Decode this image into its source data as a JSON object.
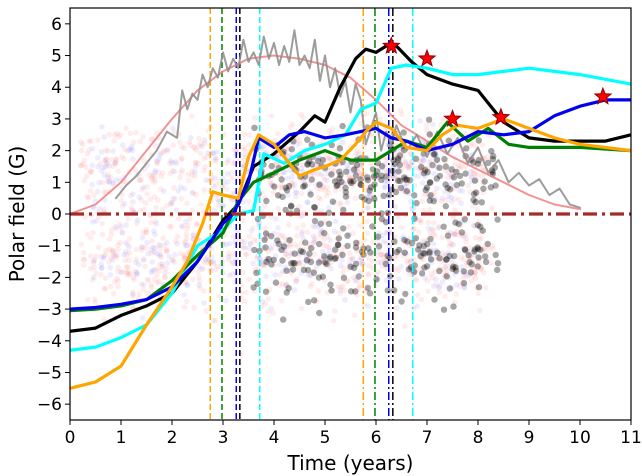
{
  "chart_data": {
    "type": "line",
    "title": "",
    "xlabel": "Time (years)",
    "ylabel": "Polar field (G)",
    "xlim": [
      0,
      11
    ],
    "ylim": [
      -6.5,
      6.5
    ],
    "x_ticks": [
      0,
      1,
      2,
      3,
      4,
      5,
      6,
      7,
      8,
      9,
      10,
      11
    ],
    "y_ticks": [
      -6,
      -5,
      -4,
      -3,
      -2,
      -1,
      0,
      1,
      2,
      3,
      4,
      5,
      6
    ],
    "grid": false,
    "legend": "none",
    "series": [
      {
        "color": "#000000",
        "style": "solid",
        "x": [
          0,
          0.5,
          1,
          1.5,
          2,
          2.5,
          3,
          3.3,
          3.6,
          4,
          4.5,
          4.8,
          5,
          5.3,
          5.6,
          5.8,
          6,
          6.2,
          6.4,
          6.7,
          7,
          7.5,
          8,
          8.5,
          9,
          9.5,
          10,
          10.5,
          11
        ],
        "y": [
          -3.7,
          -3.6,
          -3.2,
          -2.9,
          -2.5,
          -1.5,
          -0.2,
          0.3,
          1.5,
          1.9,
          2.6,
          3.1,
          2.9,
          4.0,
          4.9,
          5.2,
          5.1,
          5.3,
          5.3,
          4.8,
          4.4,
          4.1,
          3.9,
          2.9,
          2.4,
          2.3,
          2.3,
          2.3,
          2.5
        ]
      },
      {
        "color": "#0000ee",
        "style": "solid",
        "x": [
          0,
          0.5,
          1,
          1.5,
          2,
          2.5,
          3,
          3.2,
          3.5,
          3.7,
          4,
          4.3,
          4.6,
          5,
          5.4,
          5.7,
          6,
          6.3,
          6.6,
          7,
          7.5,
          8,
          8.5,
          9,
          9.5,
          10,
          10.5,
          11
        ],
        "y": [
          -3.0,
          -2.95,
          -2.85,
          -2.7,
          -2.3,
          -1.5,
          -0.3,
          0.0,
          1.0,
          2.4,
          2.1,
          2.5,
          2.6,
          2.4,
          2.5,
          2.6,
          2.7,
          2.4,
          2.3,
          2.0,
          2.2,
          2.6,
          2.5,
          2.6,
          3.1,
          3.4,
          3.6,
          3.6
        ]
      },
      {
        "color": "#008000",
        "style": "solid",
        "x": [
          0,
          0.5,
          1,
          1.5,
          2,
          2.5,
          3,
          3.3,
          3.6,
          4,
          4.5,
          5,
          5.5,
          6,
          6.3,
          6.6,
          7,
          7.4,
          7.8,
          8.2,
          8.6,
          9,
          10,
          11
        ],
        "y": [
          -3.05,
          -3.0,
          -2.9,
          -2.7,
          -2.1,
          -1.3,
          -0.6,
          0.4,
          1.0,
          1.3,
          1.7,
          2.0,
          1.7,
          1.7,
          2.0,
          2.3,
          2.1,
          2.9,
          2.3,
          2.7,
          2.2,
          2.1,
          2.1,
          2.0
        ]
      },
      {
        "color": "#ffa500",
        "style": "solid",
        "x": [
          0,
          0.5,
          1,
          1.5,
          2,
          2.3,
          2.6,
          2.8,
          3,
          3.3,
          3.5,
          3.7,
          4,
          4.3,
          4.5,
          4.8,
          5,
          5.3,
          5.6,
          5.8,
          6,
          6.3,
          6.6,
          7,
          7.3,
          7.6,
          8,
          8.5,
          9,
          9.5,
          10,
          11
        ],
        "y": [
          -5.5,
          -5.3,
          -4.8,
          -3.5,
          -2.3,
          -1.5,
          -0.3,
          0.7,
          0.6,
          0.5,
          1.8,
          2.5,
          2.2,
          1.6,
          1.2,
          1.4,
          1.5,
          1.7,
          2.2,
          2.6,
          2.9,
          2.7,
          2.1,
          2.0,
          2.5,
          2.8,
          2.7,
          3.0,
          2.7,
          2.4,
          2.2,
          2.0
        ]
      },
      {
        "color": "#00ffff",
        "style": "solid",
        "x": [
          0,
          0.5,
          1,
          1.5,
          2,
          2.5,
          3,
          3.3,
          3.6,
          3.8,
          4.2,
          4.6,
          5,
          5.4,
          5.7,
          6,
          6.3,
          6.6,
          7,
          7.5,
          8,
          8.5,
          9,
          10,
          11
        ],
        "y": [
          -4.3,
          -4.2,
          -3.9,
          -3.5,
          -2.5,
          -1.0,
          -0.5,
          0.0,
          0.1,
          1.9,
          1.6,
          2.0,
          2.2,
          2.5,
          3.3,
          3.5,
          4.6,
          4.7,
          4.6,
          4.4,
          4.4,
          4.5,
          4.6,
          4.4,
          4.1
        ]
      },
      {
        "color": "#f08080",
        "style": "solid",
        "x": [
          0,
          0.5,
          1,
          1.5,
          2,
          2.5,
          3,
          3.5,
          4,
          4.5,
          5,
          5.5,
          6,
          6.5,
          7,
          7.5,
          8,
          8.5,
          9,
          9.5,
          10
        ],
        "y": [
          0.0,
          0.3,
          1.0,
          2.0,
          3.0,
          3.9,
          4.5,
          4.9,
          5.0,
          4.9,
          4.7,
          4.3,
          3.6,
          2.8,
          2.3,
          1.8,
          1.4,
          1.0,
          0.6,
          0.3,
          0.15
        ]
      },
      {
        "color": "#8c8c8c",
        "style": "solid",
        "x": [
          0.9,
          1.1,
          1.3,
          1.5,
          1.7,
          1.9,
          2.1,
          2.2,
          2.3,
          2.4,
          2.5,
          2.6,
          2.7,
          2.8,
          2.9,
          3.0,
          3.1,
          3.2,
          3.3,
          3.4,
          3.5,
          3.6,
          3.7,
          3.8,
          3.9,
          4.0,
          4.1,
          4.2,
          4.3,
          4.4,
          4.5,
          4.6,
          4.7,
          4.8,
          4.9,
          5.0,
          5.1,
          5.2,
          5.3,
          5.4,
          5.5,
          5.6,
          5.7,
          5.8,
          5.9,
          6.0,
          6.1,
          6.2,
          6.3,
          6.4,
          6.6,
          6.8,
          7.0,
          7.2,
          7.4,
          7.6,
          7.8,
          8.0,
          8.2,
          8.4,
          8.6,
          8.8,
          9.0,
          9.2,
          9.4,
          9.6,
          9.8,
          10.0
        ],
        "y": [
          0.5,
          0.9,
          1.2,
          1.6,
          2.0,
          2.6,
          2.4,
          3.9,
          3.3,
          3.8,
          3.6,
          4.4,
          4.0,
          4.6,
          4.3,
          5.1,
          4.5,
          4.9,
          4.6,
          5.5,
          4.8,
          5.1,
          4.7,
          5.6,
          4.9,
          5.4,
          4.7,
          5.3,
          4.8,
          5.8,
          4.7,
          5.0,
          4.6,
          5.5,
          4.2,
          5.0,
          4.0,
          4.6,
          3.7,
          4.2,
          3.2,
          4.1,
          3.6,
          2.2,
          2.7,
          3.2,
          2.0,
          2.6,
          2.2,
          2.8,
          2.0,
          2.5,
          1.8,
          2.6,
          1.9,
          2.4,
          1.6,
          2.1,
          1.3,
          1.7,
          1.0,
          1.3,
          0.9,
          1.1,
          0.6,
          0.8,
          0.3,
          0.2
        ]
      }
    ],
    "reference_line": {
      "y": 0,
      "color": "#a52a2a",
      "style": "dashdot"
    },
    "vertical_lines": [
      {
        "x": 2.75,
        "color": "#ffa500",
        "style": "dashed"
      },
      {
        "x": 2.98,
        "color": "#008000",
        "style": "dashed"
      },
      {
        "x": 3.26,
        "color": "#0000ee",
        "style": "dashed"
      },
      {
        "x": 3.33,
        "color": "#000000",
        "style": "dashed"
      },
      {
        "x": 3.72,
        "color": "#00ffff",
        "style": "dashed"
      },
      {
        "x": 5.75,
        "color": "#ffa500",
        "style": "dashdot"
      },
      {
        "x": 5.98,
        "color": "#008000",
        "style": "dashdot"
      },
      {
        "x": 6.25,
        "color": "#0000ee",
        "style": "dashdot"
      },
      {
        "x": 6.33,
        "color": "#000000",
        "style": "dashdot"
      },
      {
        "x": 6.72,
        "color": "#00ffff",
        "style": "dashdot"
      }
    ],
    "star_markers": [
      {
        "x": 6.3,
        "y": 5.3
      },
      {
        "x": 7.0,
        "y": 4.9
      },
      {
        "x": 7.5,
        "y": 3.0
      },
      {
        "x": 8.45,
        "y": 3.05
      },
      {
        "x": 10.45,
        "y": 3.7
      }
    ],
    "star_color": "#ff0000",
    "star_edge_color": "#8b0000",
    "scatter_clouds": [
      {
        "color": "#ff8080",
        "count": 1100,
        "x_range": [
          0.2,
          8.3
        ],
        "y_center_upper": 1.4,
        "y_center_lower": -1.4,
        "spread": 1.0
      },
      {
        "color": "#8080ff",
        "count": 500,
        "x_range": [
          0.4,
          8.0
        ],
        "y_center_upper": 1.2,
        "y_center_lower": -1.3,
        "spread": 0.9
      },
      {
        "color": "#000000",
        "count": 380,
        "x_range": [
          3.6,
          8.4
        ],
        "y_center_upper": 1.3,
        "y_center_lower": -1.3,
        "spread": 0.9
      }
    ]
  }
}
